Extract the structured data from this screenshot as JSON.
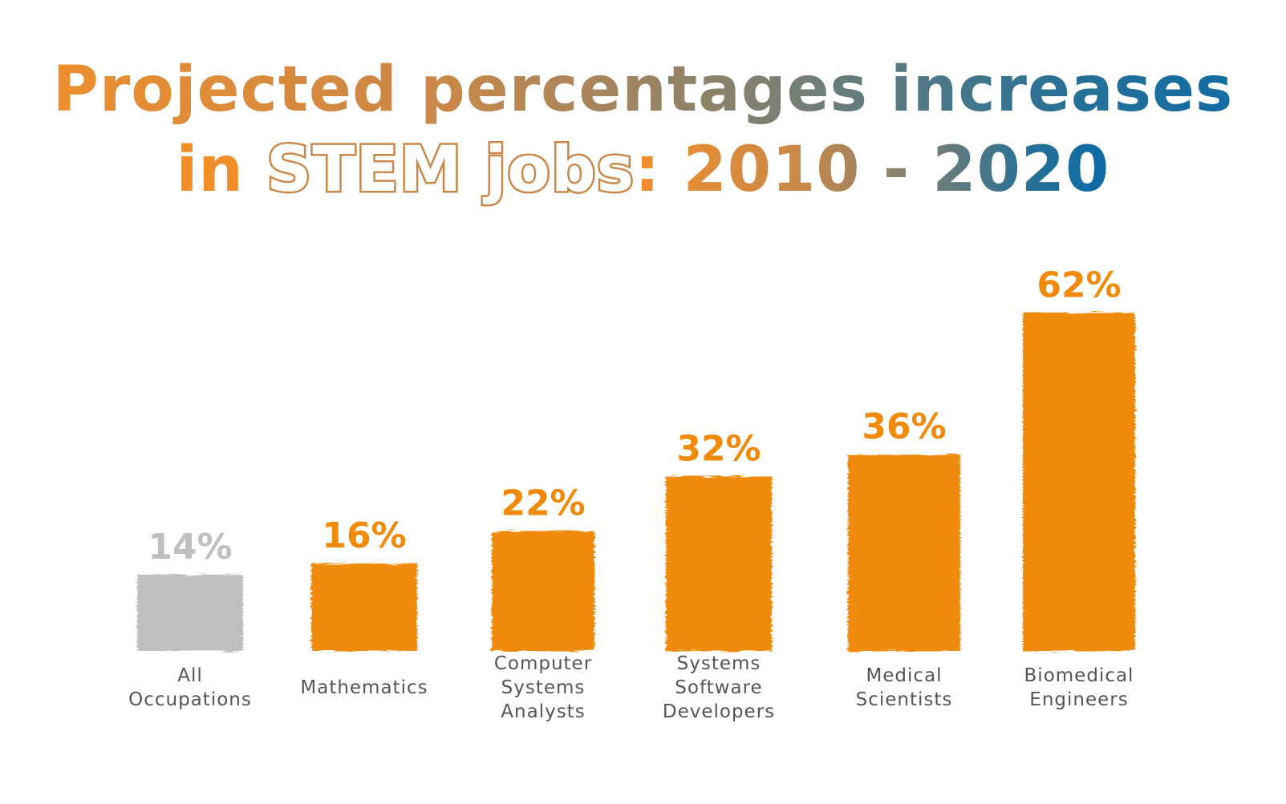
{
  "colors": {
    "accent": "#f08a0a",
    "baseline_bar": "#bdbfc0",
    "baseline_label": "#bdbfc0",
    "title_start": "#f08f2a",
    "title_end": "#0a6aa6",
    "category_text": "#555555"
  },
  "header": {
    "line1": "Projected percentages increases",
    "line2_prefix": "in",
    "line2_highlight": "STEM jobs",
    "line2_suffix": ": 2010 - 2020"
  },
  "chart_data": {
    "type": "bar",
    "title": "Projected percentages increases in STEM jobs: 2010 - 2020",
    "categories": [
      "All Occupations",
      "Mathematics",
      "Computer Systems Analysts",
      "Systems Software Developers",
      "Medical Scientists",
      "Biomedical Engineers"
    ],
    "category_lines": [
      [
        "All",
        "Occupations"
      ],
      [
        "Mathematics"
      ],
      [
        "Computer",
        "Systems",
        "Analysts"
      ],
      [
        "Systems",
        "Software",
        "Developers"
      ],
      [
        "Medical",
        "Scientists"
      ],
      [
        "Biomedical",
        "Engineers"
      ]
    ],
    "values": [
      14,
      16,
      22,
      32,
      36,
      62
    ],
    "value_labels": [
      "14%",
      "16%",
      "22%",
      "32%",
      "36%",
      "62%"
    ],
    "xlabel": "",
    "ylabel": "",
    "grid": false,
    "legend": "none"
  }
}
